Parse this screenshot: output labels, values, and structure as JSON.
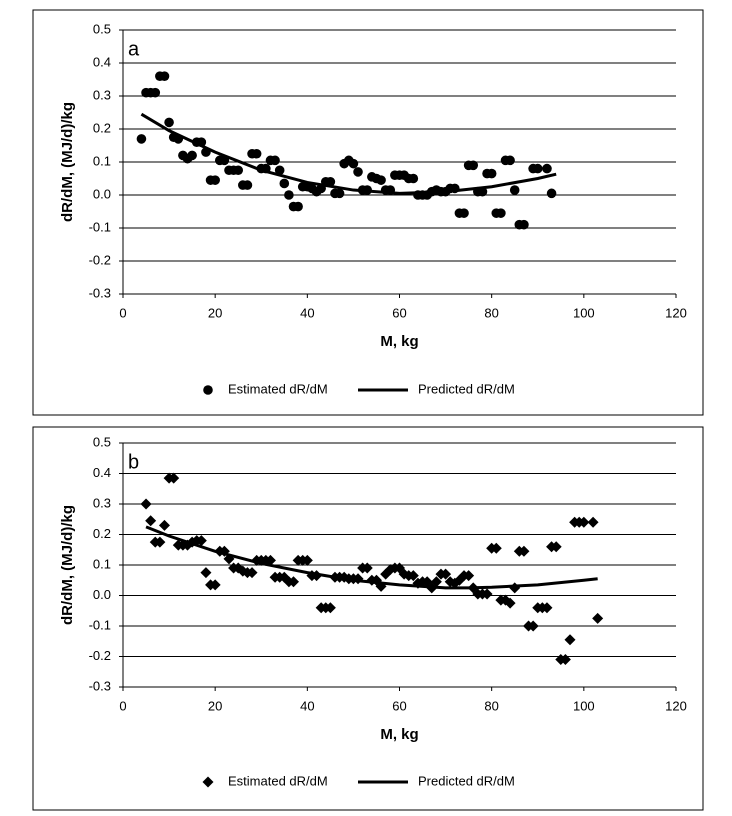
{
  "chart_data": [
    {
      "type": "scatter",
      "annotation": "a",
      "xlabel": "M, kg",
      "ylabel": "dR/dM, (MJ/d)/kg",
      "xlim": [
        0,
        120
      ],
      "xticks": [
        0,
        20,
        40,
        60,
        80,
        100,
        120
      ],
      "ylim": [
        -0.3,
        0.5
      ],
      "yticks": [
        0.5,
        0.4,
        0.3,
        0.2,
        0.1,
        {
          "value": 0,
          "label": "0.0"
        },
        -0.1,
        -0.2,
        -0.3
      ],
      "grid": true,
      "legend": "bottom",
      "series": [
        {
          "name": "Estimated dR/dM",
          "color": "#000000",
          "marker": "circle",
          "x": [
            4,
            5,
            6,
            7,
            8,
            9,
            10,
            11,
            12,
            13,
            14,
            15,
            16,
            17,
            18,
            19,
            20,
            21,
            22,
            23,
            24,
            25,
            26,
            27,
            28,
            29,
            30,
            31,
            32,
            33,
            34,
            35,
            36,
            37,
            38,
            39,
            40,
            41,
            42,
            43,
            44,
            45,
            46,
            47,
            48,
            49,
            50,
            51,
            52,
            53,
            54,
            55,
            56,
            57,
            58,
            59,
            60,
            61,
            62,
            63,
            64,
            65,
            66,
            67,
            68,
            69,
            70,
            71,
            72,
            73,
            74,
            75,
            76,
            77,
            78,
            79,
            80,
            81,
            82,
            83,
            84,
            85,
            86,
            87,
            89,
            90,
            92,
            93
          ],
          "values": [
            0.17,
            0.31,
            0.31,
            0.31,
            0.36,
            0.36,
            0.22,
            0.175,
            0.17,
            0.12,
            0.11,
            0.12,
            0.16,
            0.16,
            0.13,
            0.045,
            0.045,
            0.105,
            0.105,
            0.075,
            0.075,
            0.075,
            0.03,
            0.03,
            0.125,
            0.125,
            0.08,
            0.08,
            0.105,
            0.105,
            0.075,
            0.035,
            0.0,
            -0.035,
            -0.035,
            0.025,
            0.025,
            0.02,
            0.01,
            0.02,
            0.04,
            0.04,
            0.005,
            0.005,
            0.095,
            0.105,
            0.095,
            0.07,
            0.015,
            0.015,
            0.055,
            0.05,
            0.045,
            0.015,
            0.015,
            0.06,
            0.06,
            0.06,
            0.05,
            0.05,
            0.0,
            0.0,
            0.0,
            0.01,
            0.015,
            0.01,
            0.01,
            0.02,
            0.02,
            -0.055,
            -0.055,
            0.09,
            0.09,
            0.01,
            0.01,
            0.065,
            0.065,
            -0.055,
            -0.055,
            0.105,
            0.105,
            0.015,
            -0.09,
            -0.09,
            0.08,
            0.08,
            0.08,
            0.005
          ]
        },
        {
          "name": "Predicted dR/dM",
          "color": "#000000",
          "marker": "line",
          "x": [
            4,
            10,
            20,
            30,
            40,
            50,
            60,
            70,
            80,
            90,
            94
          ],
          "values": [
            0.245,
            0.195,
            0.13,
            0.075,
            0.038,
            0.015,
            0.005,
            0.01,
            0.025,
            0.05,
            0.063
          ]
        }
      ]
    },
    {
      "type": "scatter",
      "annotation": "b",
      "xlabel": "M, kg",
      "ylabel": "dR/dM, (MJ/d)/kg",
      "xlim": [
        0,
        120
      ],
      "xticks": [
        0,
        20,
        40,
        60,
        80,
        100,
        120
      ],
      "ylim": [
        -0.3,
        0.5
      ],
      "yticks": [
        0.5,
        0.4,
        0.3,
        0.2,
        0.1,
        {
          "value": 0,
          "label": "0.0"
        },
        -0.1,
        -0.2,
        -0.3
      ],
      "grid": true,
      "legend": "bottom",
      "series": [
        {
          "name": "Estimated dR/dM",
          "color": "#000000",
          "marker": "diamond",
          "x": [
            5,
            6,
            7,
            8,
            9,
            10,
            11,
            12,
            13,
            14,
            15,
            16,
            17,
            18,
            19,
            20,
            21,
            22,
            23,
            24,
            25,
            26,
            27,
            28,
            29,
            30,
            31,
            32,
            33,
            34,
            35,
            36,
            37,
            38,
            39,
            40,
            41,
            42,
            43,
            44,
            45,
            46,
            47,
            48,
            49,
            50,
            51,
            52,
            53,
            54,
            55,
            56,
            57,
            58,
            59,
            60,
            61,
            62,
            63,
            64,
            65,
            66,
            67,
            68,
            69,
            70,
            71,
            72,
            73,
            74,
            75,
            76,
            77,
            78,
            79,
            80,
            81,
            82,
            83,
            84,
            85,
            86,
            87,
            88,
            89,
            90,
            91,
            92,
            93,
            94,
            95,
            96,
            97,
            98,
            99,
            100,
            102,
            103
          ],
          "values": [
            0.3,
            0.245,
            0.175,
            0.175,
            0.23,
            0.385,
            0.385,
            0.165,
            0.165,
            0.165,
            0.175,
            0.18,
            0.18,
            0.075,
            0.035,
            0.035,
            0.145,
            0.145,
            0.12,
            0.09,
            0.09,
            0.08,
            0.075,
            0.075,
            0.115,
            0.115,
            0.115,
            0.115,
            0.06,
            0.06,
            0.06,
            0.045,
            0.045,
            0.115,
            0.115,
            0.115,
            0.065,
            0.065,
            -0.04,
            -0.04,
            -0.04,
            0.06,
            0.06,
            0.06,
            0.055,
            0.055,
            0.055,
            0.09,
            0.09,
            0.05,
            0.05,
            0.03,
            0.07,
            0.085,
            0.09,
            0.09,
            0.07,
            0.065,
            0.065,
            0.04,
            0.045,
            0.045,
            0.025,
            0.045,
            0.07,
            0.07,
            0.045,
            0.04,
            0.05,
            0.065,
            0.065,
            0.025,
            0.005,
            0.005,
            0.005,
            0.155,
            0.155,
            -0.015,
            -0.015,
            -0.025,
            0.025,
            0.145,
            0.145,
            -0.1,
            -0.1,
            -0.04,
            -0.04,
            -0.04,
            0.16,
            0.16,
            -0.21,
            -0.21,
            -0.145,
            0.24,
            0.24,
            0.24,
            0.24,
            -0.075
          ]
        },
        {
          "name": "Predicted dR/dM",
          "color": "#000000",
          "marker": "line",
          "x": [
            5,
            10,
            20,
            30,
            40,
            50,
            60,
            70,
            75,
            80,
            90,
            100,
            103
          ],
          "values": [
            0.225,
            0.195,
            0.145,
            0.105,
            0.075,
            0.05,
            0.035,
            0.025,
            0.025,
            0.027,
            0.035,
            0.05,
            0.055
          ]
        }
      ]
    }
  ]
}
